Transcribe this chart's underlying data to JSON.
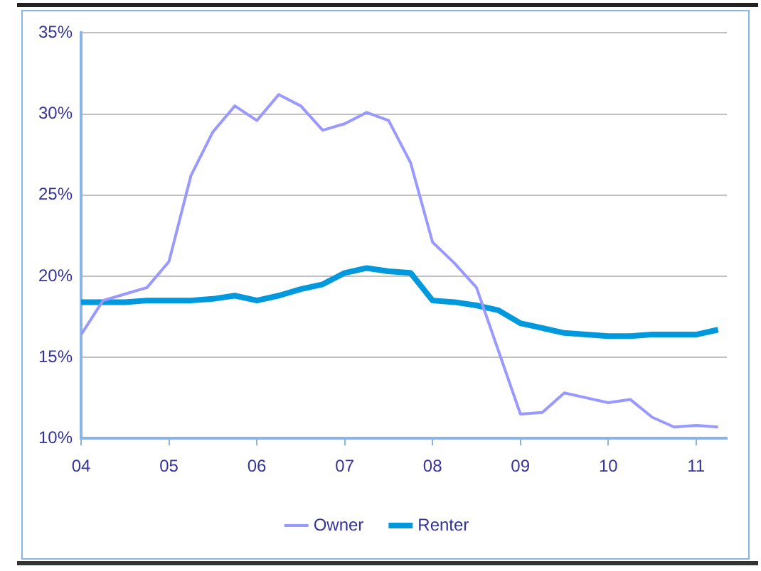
{
  "chart_data": {
    "type": "line",
    "x": [
      2004,
      2004.25,
      2004.5,
      2004.75,
      2005,
      2005.25,
      2005.5,
      2005.75,
      2006,
      2006.25,
      2006.5,
      2006.75,
      2007,
      2007.25,
      2007.5,
      2007.75,
      2008,
      2008.25,
      2008.5,
      2008.75,
      2009,
      2009.25,
      2009.5,
      2009.75,
      2010,
      2010.25,
      2010.5,
      2010.75,
      2011,
      2011.25
    ],
    "series": [
      {
        "name": "Owner",
        "color": "#9999ff",
        "values": [
          16.4,
          18.5,
          18.9,
          19.3,
          20.9,
          26.2,
          28.9,
          30.5,
          29.6,
          31.2,
          30.5,
          29.0,
          29.4,
          30.1,
          29.6,
          27.0,
          22.1,
          20.8,
          19.3,
          15.4,
          11.5,
          11.6,
          12.8,
          12.5,
          12.2,
          12.4,
          11.3,
          10.7,
          10.8,
          10.7
        ]
      },
      {
        "name": "Renter",
        "color": "#0099dd",
        "values": [
          18.4,
          18.4,
          18.4,
          18.5,
          18.5,
          18.5,
          18.6,
          18.8,
          18.5,
          18.8,
          19.2,
          19.5,
          20.2,
          20.5,
          20.3,
          20.2,
          18.5,
          18.4,
          18.2,
          17.9,
          17.1,
          16.8,
          16.5,
          16.4,
          16.3,
          16.3,
          16.4,
          16.4,
          16.4,
          16.7
        ]
      }
    ],
    "xlim": [
      2004,
      2011.35
    ],
    "xticks": [
      {
        "value": 2004,
        "label": "04"
      },
      {
        "value": 2005,
        "label": "05"
      },
      {
        "value": 2006,
        "label": "06"
      },
      {
        "value": 2007,
        "label": "07"
      },
      {
        "value": 2008,
        "label": "08"
      },
      {
        "value": 2009,
        "label": "09"
      },
      {
        "value": 2010,
        "label": "10"
      },
      {
        "value": 2011,
        "label": "11"
      }
    ],
    "ylim": [
      10,
      35
    ],
    "yticks": [
      {
        "value": 10,
        "label": "10%"
      },
      {
        "value": 15,
        "label": "15%"
      },
      {
        "value": 20,
        "label": "20%"
      },
      {
        "value": 25,
        "label": "25%"
      },
      {
        "value": 30,
        "label": "30%"
      },
      {
        "value": 35,
        "label": "35%"
      }
    ],
    "grid": "y",
    "legend": "bottom",
    "marker": "none",
    "line_style": "solid"
  }
}
